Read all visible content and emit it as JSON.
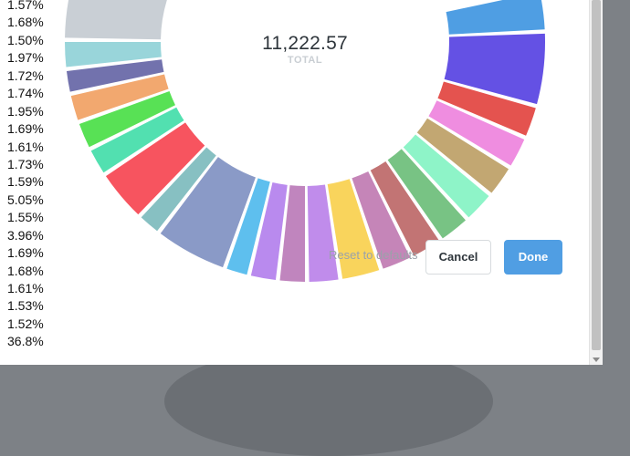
{
  "chart_data": {
    "type": "pie",
    "total": "11,222.57",
    "total_label": "TOTAL",
    "percent_labels": [
      "1.57%",
      "1.68%",
      "1.50%",
      "1.97%",
      "1.72%",
      "1.74%",
      "1.95%",
      "1.69%",
      "1.61%",
      "1.73%",
      "1.59%",
      "5.05%",
      "1.55%",
      "3.96%",
      "1.69%",
      "1.68%",
      "1.61%",
      "1.53%",
      "1.52%",
      "36.8%"
    ],
    "slices": [
      {
        "color": "#4f9ee3",
        "start": 78,
        "end": 87
      },
      {
        "color": "#6451e4",
        "start": 88,
        "end": 105
      },
      {
        "color": "#e4534f",
        "start": 106,
        "end": 113
      },
      {
        "color": "#ef8de0",
        "start": 114,
        "end": 121
      },
      {
        "color": "#c2a772",
        "start": 122,
        "end": 129
      },
      {
        "color": "#8ef4c8",
        "start": 130,
        "end": 137
      },
      {
        "color": "#78c384",
        "start": 138,
        "end": 145
      },
      {
        "color": "#c27474",
        "start": 146,
        "end": 153
      },
      {
        "color": "#c585b8",
        "start": 154,
        "end": 161
      },
      {
        "color": "#f9d45c",
        "start": 162,
        "end": 171
      },
      {
        "color": "#c08ceb",
        "start": 172,
        "end": 179
      },
      {
        "color": "#c085be",
        "start": 180,
        "end": 186
      },
      {
        "color": "#b98aee",
        "start": 187,
        "end": 193
      },
      {
        "color": "#5ebfee",
        "start": 194,
        "end": 199
      },
      {
        "color": "#8a9ac7",
        "start": 200,
        "end": 217
      },
      {
        "color": "#87c0c2",
        "start": 218,
        "end": 223
      },
      {
        "color": "#f7545f",
        "start": 224,
        "end": 236
      },
      {
        "color": "#52e0b0",
        "start": 237,
        "end": 243
      },
      {
        "color": "#58e155",
        "start": 244,
        "end": 250
      },
      {
        "color": "#f2a86f",
        "start": 251,
        "end": 257
      },
      {
        "color": "#7272ad",
        "start": 258,
        "end": 263
      },
      {
        "color": "#99d5da",
        "start": 264,
        "end": 270
      },
      {
        "color": "#c9cfd5",
        "start": 271,
        "end": 310
      }
    ]
  },
  "footer": {
    "reset_text": "Reset to defaults",
    "cancel_label": "Cancel",
    "done_label": "Done"
  }
}
